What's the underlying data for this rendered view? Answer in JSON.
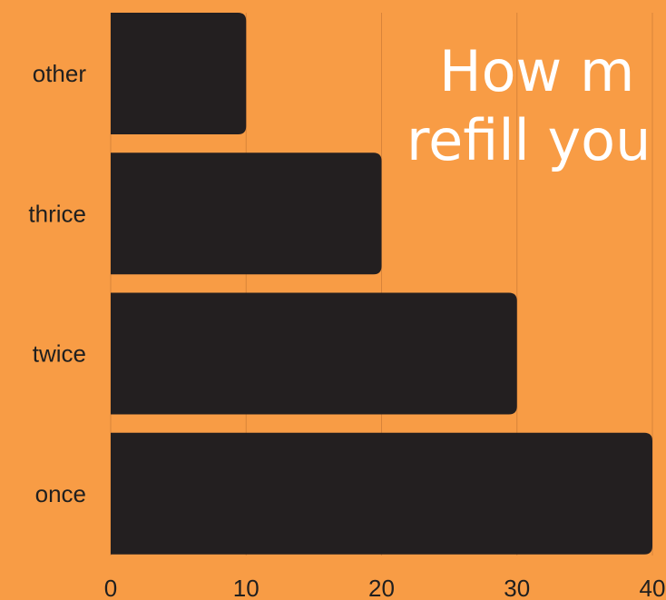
{
  "colors": {
    "background": "#f89c45",
    "bar": "#231f20",
    "title": "#ffffff",
    "grid": "#d8843a",
    "text": "#1f1f1f"
  },
  "chart_data": {
    "type": "bar",
    "orientation": "horizontal",
    "title_lines": [
      "How m",
      "refill you"
    ],
    "categories": [
      "other",
      "thrice",
      "twice",
      "once"
    ],
    "values": [
      10,
      20,
      30,
      40
    ],
    "xticks": [
      "0",
      "10",
      "20",
      "30",
      "40"
    ],
    "xlim": [
      0,
      40
    ],
    "grid": true
  }
}
